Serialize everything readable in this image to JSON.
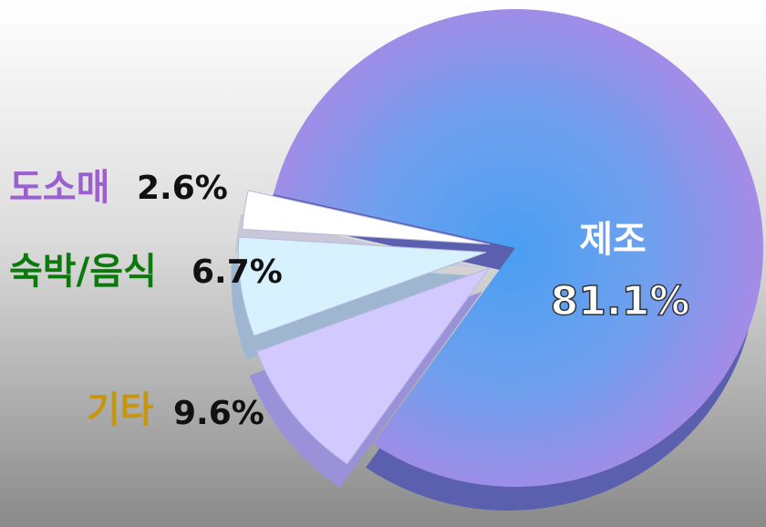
{
  "chart_data": {
    "type": "pie",
    "categories": [
      "제조",
      "기타",
      "숙박/음식",
      "도소매"
    ],
    "values": [
      81.1,
      9.6,
      6.7,
      2.6
    ],
    "value_labels": [
      "81.1%",
      "9.6%",
      "6.7%",
      "2.6%"
    ],
    "colors": [
      "#7f9cf0",
      "#d2c9ff",
      "#d8f1ff",
      "#ffffff"
    ],
    "label_colors": [
      "#ffffff",
      "#c8960a",
      "#0a7a0a",
      "#9b5fd0"
    ]
  }
}
